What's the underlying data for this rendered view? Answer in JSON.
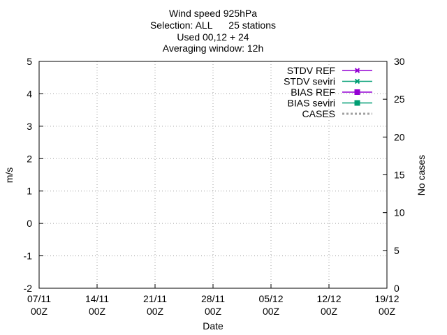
{
  "chart_data": {
    "type": "line",
    "title": [
      "Wind speed 925hPa",
      "Selection: ALL      25 stations",
      "Used 00,12 + 24",
      "Averaging window: 12h"
    ],
    "xlabel": "Date",
    "ylabel": "m/s",
    "y2label": "No cases",
    "xlim": [
      0,
      12
    ],
    "ylim": [
      -2,
      5
    ],
    "y2lim": [
      0,
      30
    ],
    "x_ticks": [
      {
        "x": 0,
        "line1": "07/11",
        "line2": "00Z"
      },
      {
        "x": 7,
        "line1": "14/11",
        "line2": "00Z"
      },
      {
        "x": 14,
        "line1": "21/11",
        "line2": "00Z"
      },
      {
        "x": 21,
        "line1": "28/11",
        "line2": "00Z"
      },
      {
        "x": 28,
        "line1": "05/12",
        "line2": "00Z"
      },
      {
        "x": 35,
        "line1": "12/12",
        "line2": "00Z"
      },
      {
        "x": 42,
        "line1": "19/12",
        "line2": "00Z"
      }
    ],
    "y_ticks": [
      -2,
      -1,
      0,
      1,
      2,
      3,
      4,
      5
    ],
    "y2_ticks": [
      0,
      5,
      10,
      15,
      20,
      25,
      30
    ],
    "grid": true,
    "legend_position": "top-right",
    "colors": {
      "ref": "#9400d3",
      "seviri": "#009e73",
      "cases": "#a0a0a0"
    },
    "series": [
      {
        "name": "STDV REF",
        "axis": "y",
        "color": "#9400d3",
        "marker": "x",
        "values": []
      },
      {
        "name": "STDV seviri",
        "axis": "y",
        "color": "#009e73",
        "marker": "x",
        "values": []
      },
      {
        "name": "BIAS REF",
        "axis": "y",
        "color": "#9400d3",
        "marker": "square",
        "values": []
      },
      {
        "name": "BIAS seviri",
        "axis": "y",
        "color": "#009e73",
        "marker": "square",
        "values": []
      },
      {
        "name": "CASES",
        "axis": "y2",
        "color": "#a0a0a0",
        "marker": "none",
        "values": []
      }
    ]
  }
}
